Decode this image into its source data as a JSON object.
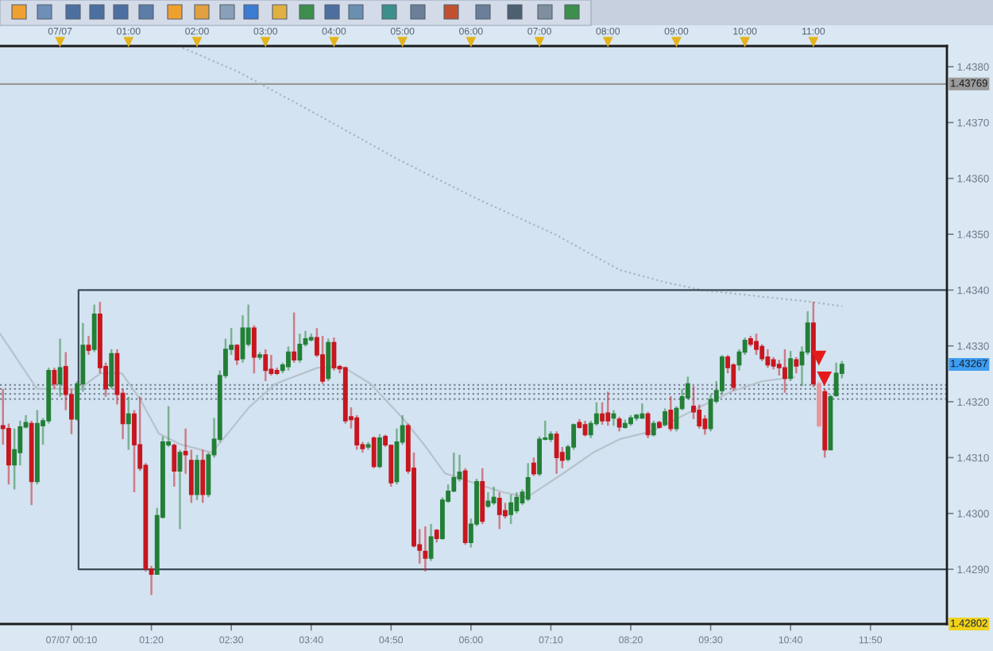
{
  "chart_data": {
    "type": "candlestick",
    "x": [
      -0.83333,
      -0.75,
      -0.66667,
      -0.58333,
      -0.5,
      -0.41667,
      -0.33333,
      -0.25,
      -0.16667,
      -0.08333,
      0,
      0.08333,
      0.16667,
      0.25,
      0.33333,
      0.41667,
      0.5,
      0.58333,
      0.66667,
      0.75,
      0.83333,
      0.91667,
      1,
      1.08333,
      1.16667,
      1.25,
      1.33333,
      1.41667,
      1.5,
      1.58333,
      1.66667,
      1.75,
      1.83333,
      1.91667,
      2,
      2.08333,
      2.16667,
      2.25,
      2.33333,
      2.41667,
      2.5,
      2.58333,
      2.66667,
      2.75,
      2.83333,
      2.91667,
      3,
      3.08333,
      3.16667,
      3.25,
      3.33333,
      3.41667,
      3.5,
      3.58333,
      3.66667,
      3.75,
      3.83333,
      3.91667,
      4,
      4.08333,
      4.16667,
      4.25,
      4.33333,
      4.41667,
      4.5,
      4.58333,
      4.66667,
      4.75,
      4.83333,
      4.91667,
      5,
      5.08333,
      5.16667,
      5.25,
      5.33333,
      5.41667,
      5.5,
      5.58333,
      5.66667,
      5.75,
      5.83333,
      5.91667,
      6,
      6.08333,
      6.16667,
      6.25,
      6.33333,
      6.41667,
      6.5,
      6.58333,
      6.66667,
      6.75,
      6.83333,
      6.91667,
      7,
      7.08333,
      7.16667,
      7.25,
      7.33333,
      7.41667,
      7.5,
      7.58333,
      7.66667,
      7.75,
      7.83333,
      7.91667,
      8,
      8.08333,
      8.16667,
      8.25,
      8.33333,
      8.41667,
      8.5,
      8.58333,
      8.66667,
      8.75,
      8.83333,
      8.91667,
      9,
      9.08333,
      9.16667,
      9.25,
      9.33333,
      9.41667,
      9.5,
      9.58333,
      9.66667,
      9.75,
      9.83333,
      9.91667,
      10,
      10.08333,
      10.16667,
      10.25,
      10.33333,
      10.41667,
      10.5,
      10.58333,
      10.66667,
      10.75,
      10.83333,
      10.91667,
      11,
      11.08333,
      11.16667,
      11.25,
      11.33333,
      11.41667
    ],
    "ohlc": [
      [
        1.43157,
        1.43223,
        1.43123,
        1.43152
      ],
      [
        1.43152,
        1.43161,
        1.43052,
        1.43087
      ],
      [
        1.43087,
        1.43152,
        1.43043,
        1.43114
      ],
      [
        1.43109,
        1.43166,
        1.43086,
        1.43155
      ],
      [
        1.43155,
        1.43176,
        1.43152,
        1.43163
      ],
      [
        1.43161,
        1.43166,
        1.43015,
        1.43057
      ],
      [
        1.43057,
        1.43185,
        1.43052,
        1.43161
      ],
      [
        1.43157,
        1.43171,
        1.43123,
        1.43166
      ],
      [
        1.43166,
        1.43261,
        1.43161,
        1.43256
      ],
      [
        1.43256,
        1.43261,
        1.43223,
        1.43232
      ],
      [
        1.43232,
        1.43313,
        1.43209,
        1.43261
      ],
      [
        1.43263,
        1.43289,
        1.43185,
        1.43213
      ],
      [
        1.43213,
        1.43223,
        1.43142,
        1.43169
      ],
      [
        1.43169,
        1.43237,
        1.43166,
        1.43232
      ],
      [
        1.43232,
        1.43341,
        1.43218,
        1.43301
      ],
      [
        1.43301,
        1.43318,
        1.43284,
        1.43292
      ],
      [
        1.43294,
        1.43374,
        1.43289,
        1.43357
      ],
      [
        1.43357,
        1.43379,
        1.43251,
        1.43261
      ],
      [
        1.43263,
        1.4327,
        1.43209,
        1.43223
      ],
      [
        1.43228,
        1.43294,
        1.43223,
        1.43286
      ],
      [
        1.43286,
        1.43294,
        1.43195,
        1.43213
      ],
      [
        1.43215,
        1.43223,
        1.43133,
        1.43161
      ],
      [
        1.43161,
        1.43209,
        1.43114,
        1.43178
      ],
      [
        1.43178,
        1.43185,
        1.43038,
        1.43123
      ],
      [
        1.43123,
        1.43209,
        1.43076,
        1.43081
      ],
      [
        1.43086,
        1.4309,
        1.42896,
        1.42901
      ],
      [
        1.429,
        1.42906,
        1.42854,
        1.42891
      ],
      [
        1.42891,
        1.4301,
        1.42891,
        1.42996
      ],
      [
        1.42993,
        1.43138,
        1.42991,
        1.43128
      ],
      [
        1.43123,
        1.43192,
        1.43119,
        1.43128
      ],
      [
        1.43122,
        1.43125,
        1.43048,
        1.43076
      ],
      [
        1.43076,
        1.43114,
        1.42972,
        1.43109
      ],
      [
        1.43111,
        1.43152,
        1.43071,
        1.43105
      ],
      [
        1.43095,
        1.43114,
        1.43019,
        1.43034
      ],
      [
        1.43034,
        1.43105,
        1.43024,
        1.43095
      ],
      [
        1.43095,
        1.43114,
        1.43019,
        1.43034
      ],
      [
        1.43034,
        1.43109,
        1.43029,
        1.43105
      ],
      [
        1.43105,
        1.43171,
        1.431,
        1.43133
      ],
      [
        1.43133,
        1.43256,
        1.43128,
        1.43247
      ],
      [
        1.43247,
        1.43313,
        1.43242,
        1.43294
      ],
      [
        1.43294,
        1.43332,
        1.43284,
        1.43301
      ],
      [
        1.43301,
        1.43303,
        1.43266,
        1.43275
      ],
      [
        1.43277,
        1.43355,
        1.4327,
        1.43332
      ],
      [
        1.43303,
        1.43374,
        1.43299,
        1.43332
      ],
      [
        1.43332,
        1.43337,
        1.43251,
        1.4328
      ],
      [
        1.4328,
        1.43289,
        1.43275,
        1.43284
      ],
      [
        1.43284,
        1.43294,
        1.43237,
        1.43256
      ],
      [
        1.43258,
        1.43284,
        1.43247,
        1.43251
      ],
      [
        1.43256,
        1.43261,
        1.43248,
        1.43251
      ],
      [
        1.43256,
        1.4327,
        1.43251,
        1.43266
      ],
      [
        1.43263,
        1.43299,
        1.43256,
        1.43289
      ],
      [
        1.43289,
        1.4336,
        1.4327,
        1.43275
      ],
      [
        1.43275,
        1.43322,
        1.4327,
        1.43303
      ],
      [
        1.43303,
        1.43327,
        1.43299,
        1.43313
      ],
      [
        1.43311,
        1.43322,
        1.43308,
        1.43315
      ],
      [
        1.43315,
        1.43332,
        1.4328,
        1.43284
      ],
      [
        1.43284,
        1.43318,
        1.43232,
        1.43237
      ],
      [
        1.43242,
        1.43313,
        1.43237,
        1.43306
      ],
      [
        1.43306,
        1.43315,
        1.43256,
        1.43261
      ],
      [
        1.43263,
        1.43266,
        1.43251,
        1.43259
      ],
      [
        1.43261,
        1.43263,
        1.43161,
        1.43166
      ],
      [
        1.43173,
        1.4319,
        1.43152,
        1.43168
      ],
      [
        1.43171,
        1.43176,
        1.43114,
        1.43123
      ],
      [
        1.43123,
        1.43128,
        1.43109,
        1.43116
      ],
      [
        1.43119,
        1.43128,
        1.43114,
        1.43123
      ],
      [
        1.43135,
        1.43138,
        1.43081,
        1.43084
      ],
      [
        1.43084,
        1.43142,
        1.43081,
        1.43135
      ],
      [
        1.43138,
        1.43141,
        1.43119,
        1.43123
      ],
      [
        1.43122,
        1.43123,
        1.43048,
        1.43055
      ],
      [
        1.43057,
        1.43152,
        1.43052,
        1.43128
      ],
      [
        1.43128,
        1.43176,
        1.43123,
        1.43157
      ],
      [
        1.43157,
        1.43161,
        1.43071,
        1.43076
      ],
      [
        1.43081,
        1.43109,
        1.42939,
        1.42942
      ],
      [
        1.42944,
        1.42972,
        1.4291,
        1.42934
      ],
      [
        1.42932,
        1.42977,
        1.42896,
        1.4292
      ],
      [
        1.4292,
        1.42981,
        1.42915,
        1.42958
      ],
      [
        1.4297,
        1.42972,
        1.42948,
        1.42955
      ],
      [
        1.42955,
        1.43029,
        1.42953,
        1.43024
      ],
      [
        1.43022,
        1.43052,
        1.43019,
        1.4304
      ],
      [
        1.4304,
        1.43109,
        1.43038,
        1.43064
      ],
      [
        1.43062,
        1.43105,
        1.43057,
        1.43074
      ],
      [
        1.43076,
        1.43081,
        1.42944,
        1.42948
      ],
      [
        1.42948,
        1.42991,
        1.42939,
        1.42981
      ],
      [
        1.42981,
        1.43062,
        1.42977,
        1.43057
      ],
      [
        1.43057,
        1.43081,
        1.42981,
        1.42986
      ],
      [
        1.43013,
        1.43038,
        1.4301,
        1.43022
      ],
      [
        1.43019,
        1.43048,
        1.43015,
        1.43029
      ],
      [
        1.43027,
        1.43038,
        1.42972,
        1.42998
      ],
      [
        1.43005,
        1.43019,
        1.42991,
        1.42996
      ],
      [
        1.42998,
        1.43034,
        1.42981,
        1.43019
      ],
      [
        1.43005,
        1.43038,
        1.43,
        1.43029
      ],
      [
        1.43019,
        1.43043,
        1.43015,
        1.43038
      ],
      [
        1.43026,
        1.4309,
        1.43022,
        1.43064
      ],
      [
        1.4309,
        1.431,
        1.43067,
        1.43071
      ],
      [
        1.43071,
        1.43138,
        1.43067,
        1.43133
      ],
      [
        1.43133,
        1.43166,
        1.43131,
        1.43135
      ],
      [
        1.43133,
        1.43147,
        1.43128,
        1.43142
      ],
      [
        1.43142,
        1.43147,
        1.43071,
        1.431
      ],
      [
        1.43109,
        1.43119,
        1.43081,
        1.43095
      ],
      [
        1.43097,
        1.43123,
        1.43093,
        1.43119
      ],
      [
        1.43119,
        1.43161,
        1.43114,
        1.43159
      ],
      [
        1.43163,
        1.43169,
        1.43152,
        1.43154
      ],
      [
        1.43159,
        1.43166,
        1.43138,
        1.43141
      ],
      [
        1.43141,
        1.43166,
        1.43135,
        1.43161
      ],
      [
        1.43161,
        1.43199,
        1.43157,
        1.43178
      ],
      [
        1.43178,
        1.43199,
        1.43159,
        1.43166
      ],
      [
        1.4318,
        1.43218,
        1.43157,
        1.43166
      ],
      [
        1.43171,
        1.43185,
        1.43157,
        1.43178
      ],
      [
        1.43169,
        1.43173,
        1.43147,
        1.43155
      ],
      [
        1.43154,
        1.43168,
        1.43152,
        1.43161
      ],
      [
        1.43161,
        1.43176,
        1.43157,
        1.43171
      ],
      [
        1.43171,
        1.43178,
        1.43166,
        1.43176
      ],
      [
        1.43171,
        1.43197,
        1.43169,
        1.43178
      ],
      [
        1.43178,
        1.43182,
        1.43135,
        1.43141
      ],
      [
        1.43141,
        1.43166,
        1.43138,
        1.43161
      ],
      [
        1.43163,
        1.43166,
        1.43152,
        1.43154
      ],
      [
        1.43159,
        1.43188,
        1.43156,
        1.43182
      ],
      [
        1.43185,
        1.4321,
        1.43147,
        1.43152
      ],
      [
        1.43152,
        1.43192,
        1.43147,
        1.43188
      ],
      [
        1.43188,
        1.43223,
        1.43185,
        1.43209
      ],
      [
        1.43207,
        1.43245,
        1.43204,
        1.43232
      ],
      [
        1.43192,
        1.43228,
        1.43169,
        1.43182
      ],
      [
        1.43185,
        1.43195,
        1.43152,
        1.43157
      ],
      [
        1.43169,
        1.43176,
        1.43141,
        1.43152
      ],
      [
        1.43152,
        1.43213,
        1.43147,
        1.43204
      ],
      [
        1.43201,
        1.43237,
        1.43197,
        1.4322
      ],
      [
        1.4322,
        1.43284,
        1.43213,
        1.4328
      ],
      [
        1.4328,
        1.43284,
        1.43251,
        1.43261
      ],
      [
        1.43266,
        1.43269,
        1.4322,
        1.43226
      ],
      [
        1.43266,
        1.43294,
        1.43256,
        1.43289
      ],
      [
        1.43289,
        1.43315,
        1.43284,
        1.4331
      ],
      [
        1.43313,
        1.43318,
        1.43299,
        1.43303
      ],
      [
        1.43308,
        1.43322,
        1.43284,
        1.43294
      ],
      [
        1.43299,
        1.43303,
        1.43273,
        1.43277
      ],
      [
        1.4328,
        1.43294,
        1.43261,
        1.43266
      ],
      [
        1.43275,
        1.4328,
        1.43258,
        1.43264
      ],
      [
        1.43267,
        1.43275,
        1.43247,
        1.43261
      ],
      [
        1.43261,
        1.43294,
        1.43216,
        1.43242
      ],
      [
        1.43242,
        1.43291,
        1.43237,
        1.43277
      ],
      [
        1.43275,
        1.4328,
        1.43251,
        1.43264
      ],
      [
        1.43266,
        1.43299,
        1.43228,
        1.43289
      ],
      [
        1.43289,
        1.43362,
        1.43284,
        1.43341
      ],
      [
        1.43341,
        1.43379,
        1.43226,
        1.43232
      ],
      [
        1.43232,
        1.43237,
        1.43154,
        1.43157
      ],
      [
        1.43218,
        1.43223,
        1.431,
        1.43114
      ],
      [
        1.43114,
        1.43213,
        1.43114,
        1.43209
      ],
      [
        1.43211,
        1.4327,
        1.43209,
        1.43251
      ],
      [
        1.43251,
        1.43273,
        1.43242,
        1.43267
      ]
    ],
    "colors": [
      "#c8161e",
      "#c8161e",
      "#237f36",
      "#237f36",
      "#237f36",
      "#c8161e",
      "#237f36",
      "#237f36",
      "#237f36",
      "#c8161e",
      "#237f36",
      "#c8161e",
      "#c8161e",
      "#237f36",
      "#237f36",
      "#c8161e",
      "#237f36",
      "#c8161e",
      "#c8161e",
      "#237f36",
      "#c8161e",
      "#c8161e",
      "#237f36",
      "#c8161e",
      "#c8161e",
      "#c8161e",
      "#c8161e",
      "#237f36",
      "#237f36",
      "#237f36",
      "#c8161e",
      "#237f36",
      "#c8161e",
      "#c8161e",
      "#237f36",
      "#c8161e",
      "#237f36",
      "#237f36",
      "#237f36",
      "#237f36",
      "#237f36",
      "#c8161e",
      "#237f36",
      "#237f36",
      "#c8161e",
      "#237f36",
      "#c8161e",
      "#c8161e",
      "#c8161e",
      "#237f36",
      "#237f36",
      "#c8161e",
      "#237f36",
      "#237f36",
      "#237f36",
      "#c8161e",
      "#c8161e",
      "#237f36",
      "#c8161e",
      "#c8161e",
      "#c8161e",
      "#c8161e",
      "#c8161e",
      "#c8161e",
      "#237f36",
      "#c8161e",
      "#237f36",
      "#c8161e",
      "#c8161e",
      "#237f36",
      "#237f36",
      "#c8161e",
      "#c8161e",
      "#c8161e",
      "#c8161e",
      "#237f36",
      "#c8161e",
      "#237f36",
      "#237f36",
      "#237f36",
      "#237f36",
      "#c8161e",
      "#237f36",
      "#237f36",
      "#c8161e",
      "#237f36",
      "#237f36",
      "#c8161e",
      "#c8161e",
      "#237f36",
      "#237f36",
      "#237f36",
      "#237f36",
      "#c8161e",
      "#237f36",
      "#237f36",
      "#237f36",
      "#c8161e",
      "#c8161e",
      "#237f36",
      "#237f36",
      "#c8161e",
      "#c8161e",
      "#237f36",
      "#237f36",
      "#c8161e",
      "#c8161e",
      "#237f36",
      "#c8161e",
      "#237f36",
      "#237f36",
      "#237f36",
      "#237f36",
      "#c8161e",
      "#237f36",
      "#c8161e",
      "#237f36",
      "#c8161e",
      "#237f36",
      "#237f36",
      "#237f36",
      "#c8161e",
      "#c8161e",
      "#c8161e",
      "#237f36",
      "#237f36",
      "#237f36",
      "#c8161e",
      "#c8161e",
      "#237f36",
      "#237f36",
      "#c8161e",
      "#c8161e",
      "#c8161e",
      "#c8161e",
      "#c8161e",
      "#c8161e",
      "#c8161e",
      "#237f36",
      "#c8161e",
      "#237f36",
      "#237f36",
      "#c8161e",
      "#e597a0",
      "#c8161e",
      "#237f36",
      "#237f36",
      "#237f36"
    ],
    "series": [
      {
        "type": "line",
        "color": "#a9b3bd",
        "line_style": "dotted",
        "x": [
          1.79,
          2.6,
          3.76,
          4.92,
          6.08,
          7.24,
          8.17,
          8.87,
          9.38,
          10.26,
          10.96,
          11.42
        ],
        "values": [
          1.43834,
          1.43791,
          1.43714,
          1.43635,
          1.43564,
          1.43499,
          1.43436,
          1.43413,
          1.434,
          1.43388,
          1.43379,
          1.43371
        ]
      },
      {
        "type": "line",
        "color": "#b9c2cb",
        "line_style": "solid",
        "x": [
          -0.877,
          -0.336,
          0.283,
          0.592,
          0.902,
          1.172,
          1.443,
          1.752,
          2.216,
          2.448,
          2.758,
          3.144,
          3.763,
          4.15,
          4.536,
          5.0,
          5.311,
          5.619,
          6.083,
          6.471,
          6.819,
          7.399,
          7.784,
          8.172,
          8.636,
          8.868,
          9.332,
          9.796,
          10.26,
          10.72
        ],
        "values": [
          1.43322,
          1.43223,
          1.43223,
          1.43251,
          1.43251,
          1.43204,
          1.43143,
          1.43124,
          1.43109,
          1.43143,
          1.4319,
          1.43232,
          1.43261,
          1.43261,
          1.43232,
          1.43171,
          1.43124,
          1.43072,
          1.43053,
          1.43038,
          1.43029,
          1.43076,
          1.43109,
          1.43133,
          1.43147,
          1.43161,
          1.4319,
          1.43218,
          1.43237,
          1.43244
        ]
      },
      {
        "type": "line",
        "color": "#3f4b57",
        "line_style": "solid",
        "x": [
          12.95,
          0.27,
          0.27,
          12.95
        ],
        "values": [
          1.434,
          1.434,
          1.429,
          1.429
        ]
      },
      {
        "type": "scatter",
        "color": "#e51b1b",
        "marker": "triangle",
        "x": [
          11.08,
          11.16
        ],
        "values": [
          1.43278,
          1.43241
        ]
      }
    ],
    "xlim": [
      -0.877,
      12.95
    ],
    "xticks": [
      {
        "value": 0.16667,
        "label": "07/07 00:10"
      },
      {
        "value": 1.33333,
        "label": "01:20"
      },
      {
        "value": 2.5,
        "label": "02:30"
      },
      {
        "value": 3.66667,
        "label": "03:40"
      },
      {
        "value": 4.83333,
        "label": "04:50"
      },
      {
        "value": 6,
        "label": "06:00"
      },
      {
        "value": 7.16667,
        "label": "07:10"
      },
      {
        "value": 8.33333,
        "label": "08:20"
      },
      {
        "value": 9.5,
        "label": "09:30"
      },
      {
        "value": 10.66667,
        "label": "10:40"
      },
      {
        "value": 11.83333,
        "label": "11:50"
      }
    ],
    "x2lim": [
      -0.877,
      12.95
    ],
    "x2ticks": [
      {
        "value": 0,
        "label": "07/07"
      },
      {
        "value": 1,
        "label": "01:00"
      },
      {
        "value": 2,
        "label": "02:00"
      },
      {
        "value": 3,
        "label": "03:00"
      },
      {
        "value": 4,
        "label": "04:00"
      },
      {
        "value": 5,
        "label": "05:00"
      },
      {
        "value": 6,
        "label": "06:00"
      },
      {
        "value": 7,
        "label": "07:00"
      },
      {
        "value": 8,
        "label": "08:00"
      },
      {
        "value": 9,
        "label": "09:00"
      },
      {
        "value": 10,
        "label": "10:00"
      },
      {
        "value": 11,
        "label": "11:00"
      }
    ],
    "ylim": [
      1.42802,
      1.43837
    ],
    "yticks": [
      {
        "value": 1.429,
        "label": "1.4290"
      },
      {
        "value": 1.43,
        "label": "1.4300"
      },
      {
        "value": 1.431,
        "label": "1.4310"
      },
      {
        "value": 1.432,
        "label": "1.4320"
      },
      {
        "value": 1.433,
        "label": "1.4330"
      },
      {
        "value": 1.434,
        "label": "1.4340"
      },
      {
        "value": 1.435,
        "label": "1.4350"
      },
      {
        "value": 1.436,
        "label": "1.4360"
      },
      {
        "value": 1.437,
        "label": "1.4370"
      },
      {
        "value": 1.438,
        "label": "1.4380"
      }
    ],
    "ref_lines": [
      {
        "axis": "y",
        "value": 1.43769,
        "label": "1.43769",
        "color": "#9a9a9a",
        "line_style": "solid"
      },
      {
        "axis": "y",
        "value": 1.4323,
        "color": "#7b8794",
        "line_style": "dotted"
      },
      {
        "axis": "y",
        "value": 1.43223,
        "color": "#7b8794",
        "line_style": "dotted"
      },
      {
        "axis": "y",
        "value": 1.43214,
        "color": "#7b8794",
        "line_style": "dotted"
      },
      {
        "axis": "y",
        "value": 1.43205,
        "color": "#7b8794",
        "line_style": "dotted"
      }
    ],
    "annotations": [
      {
        "text": "1.43267",
        "y": 1.43267
      },
      {
        "text": "1.42802",
        "y": 1.42802
      }
    ]
  }
}
